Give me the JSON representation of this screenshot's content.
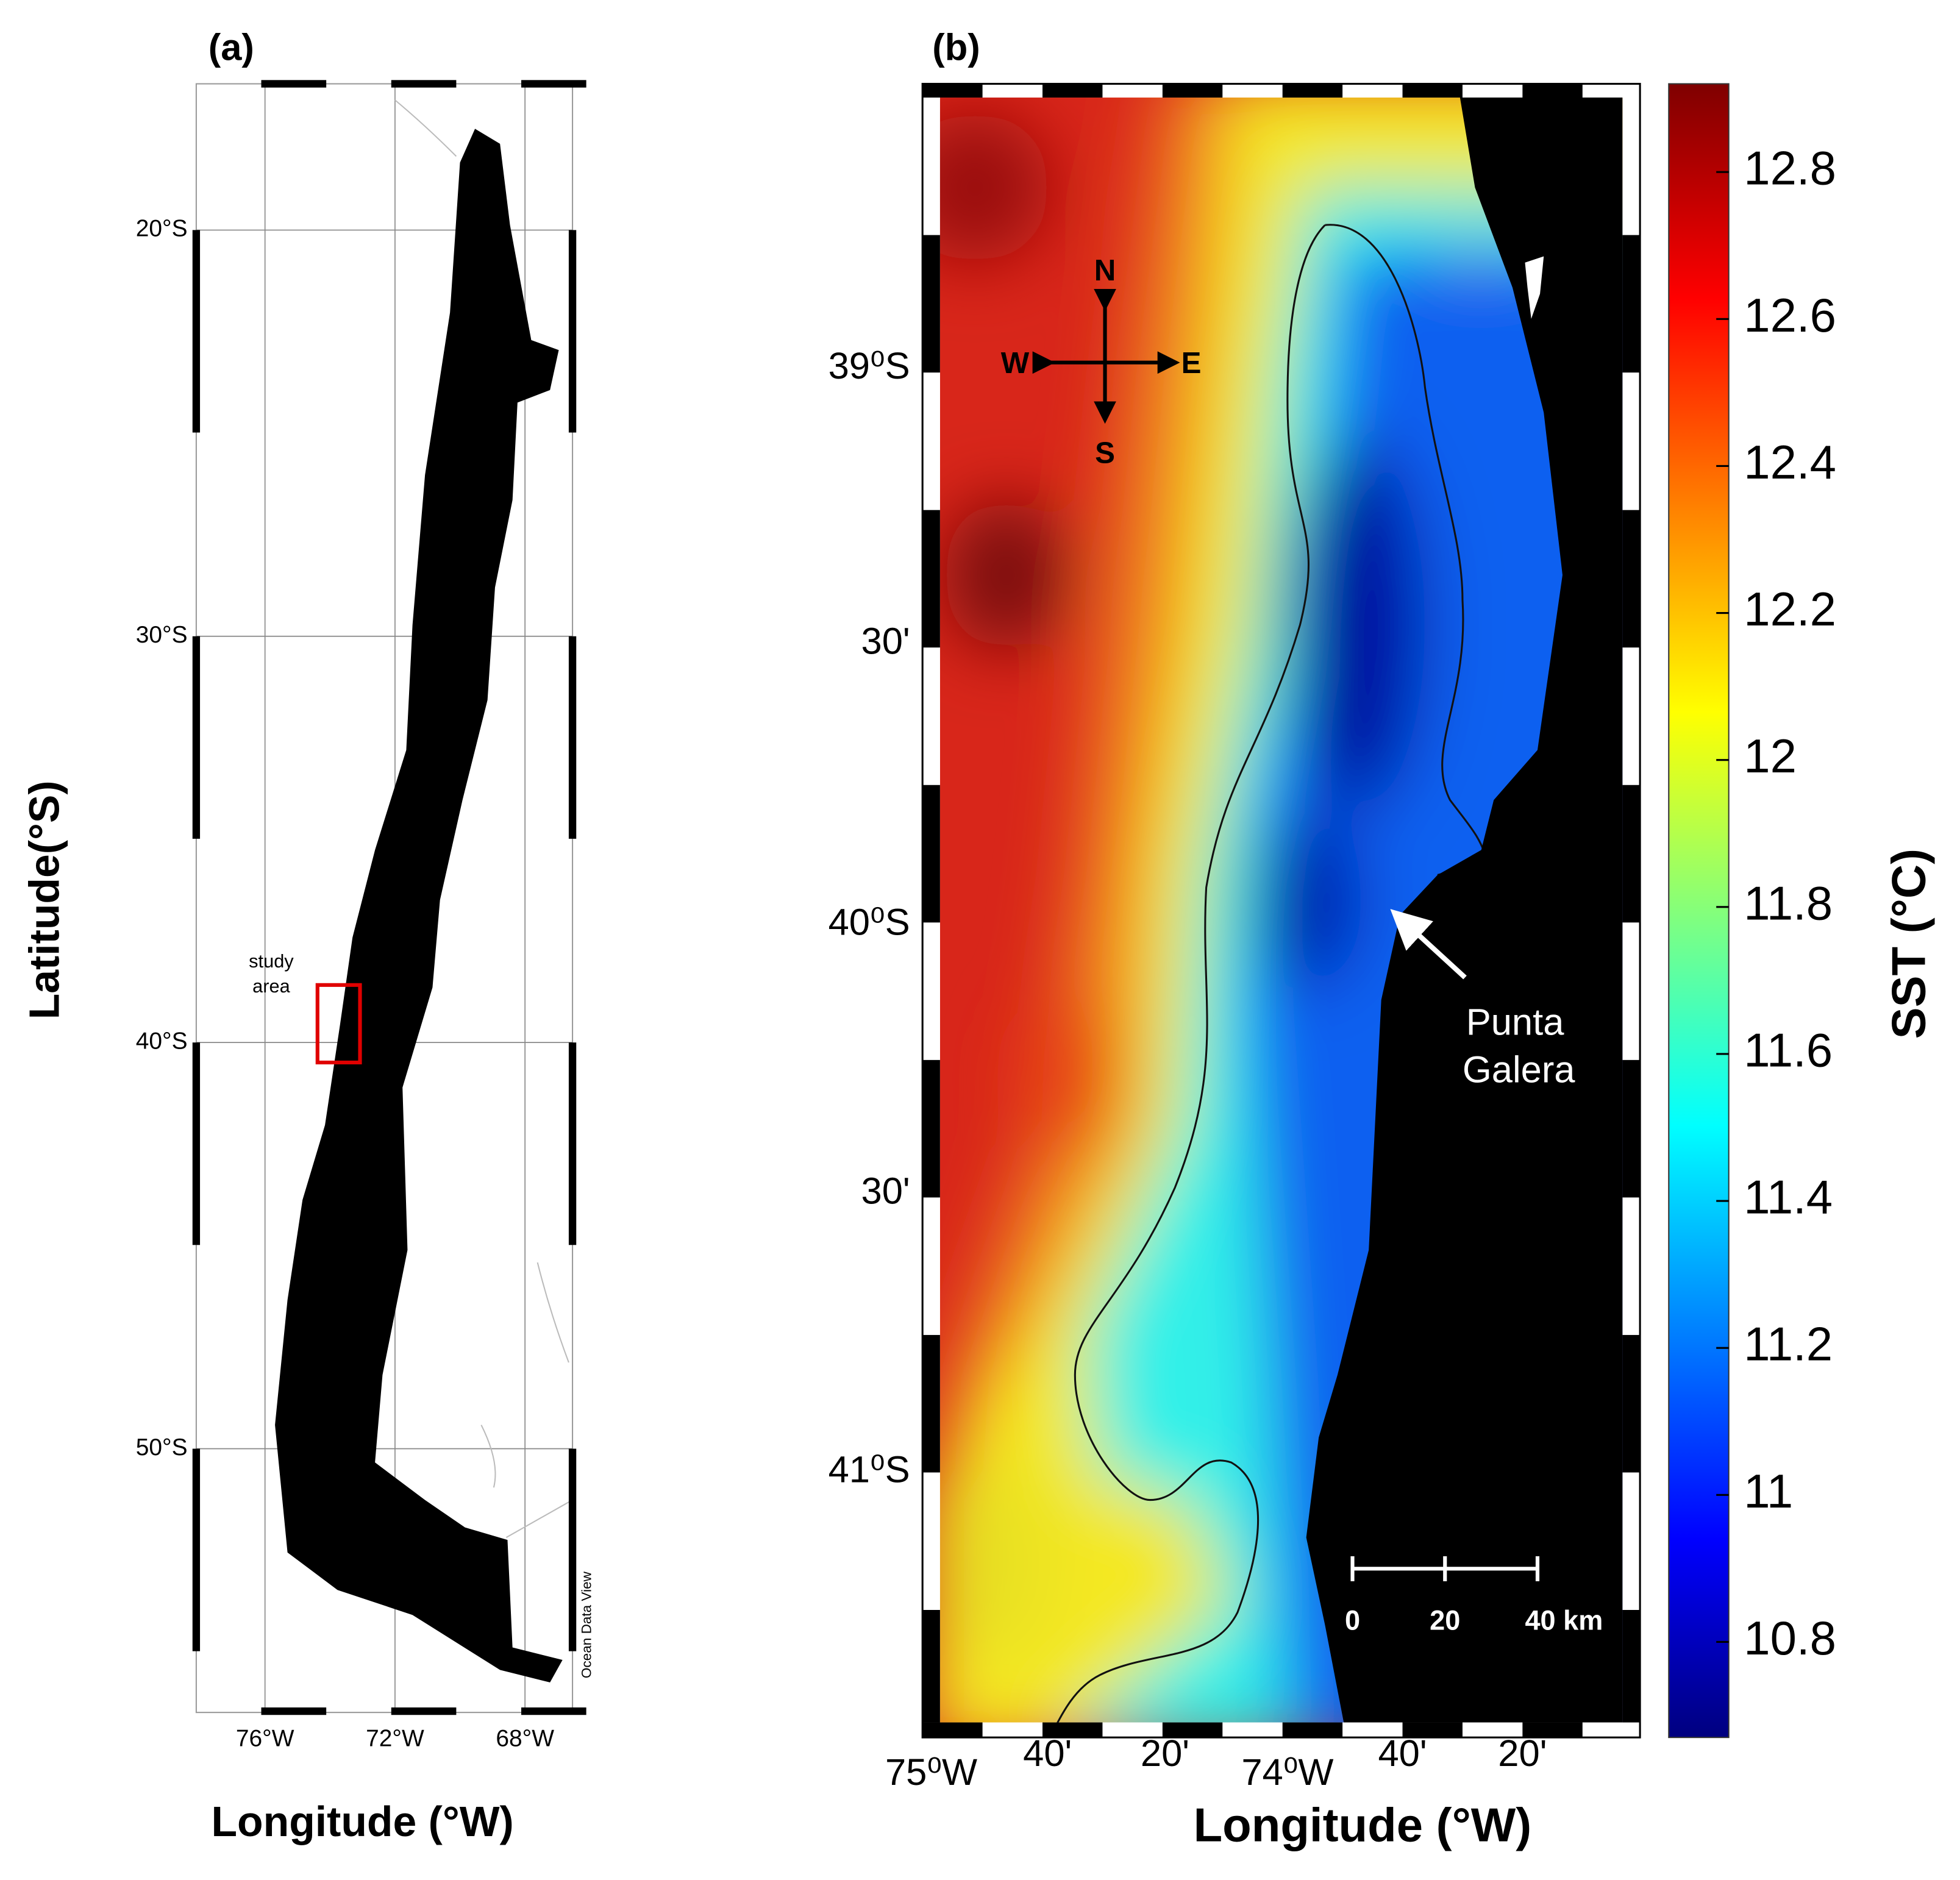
{
  "panel_a": {
    "label": "(a)",
    "lat_labels": [
      "20°S",
      "30°S",
      "40°S",
      "50°S"
    ],
    "lon_labels": [
      "76°W",
      "72°W",
      "68°W"
    ],
    "y_axis_title": "Latitude(°S)",
    "x_axis_title": "Longitude (°W)",
    "study_area": [
      "study",
      "area"
    ],
    "credit": "Ocean Data View"
  },
  "panel_b": {
    "label": "(b)",
    "lat_labels": [
      "39⁰S",
      "30'",
      "40⁰S",
      "30'",
      "41⁰S"
    ],
    "lon_labels": [
      "75⁰W",
      "40'",
      "20'",
      "74⁰W",
      "40'",
      "20'"
    ],
    "x_axis_title": "Longitude  (°W)",
    "compass": {
      "n": "N",
      "s": "S",
      "e": "E",
      "w": "W"
    },
    "annotation": [
      "Punta",
      "Galera"
    ],
    "scale_bar": [
      "0",
      "20",
      "40 km"
    ]
  },
  "colorbar": {
    "title": "SST (°C)",
    "lim": [
      10.67,
      12.92
    ],
    "ticks": [
      10.8,
      11,
      11.2,
      11.4,
      11.6,
      11.8,
      12,
      12.2,
      12.4,
      12.6,
      12.8
    ]
  }
}
